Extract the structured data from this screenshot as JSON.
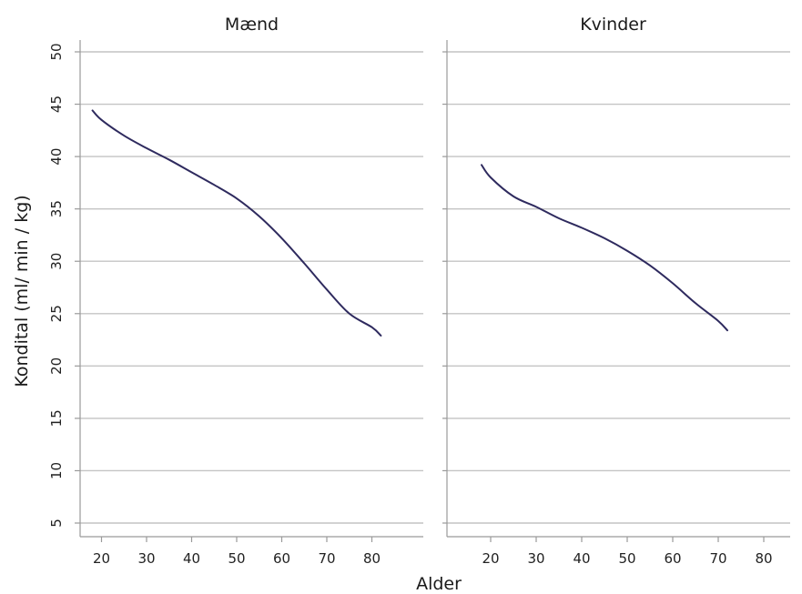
{
  "chart_data": {
    "type": "line",
    "ylabel": "Kondital (ml/ min / kg)",
    "xlabel": "Alder",
    "ylim": [
      5,
      50
    ],
    "yticks": [
      5,
      10,
      15,
      20,
      25,
      30,
      35,
      40,
      45,
      50
    ],
    "xlim": [
      15,
      85
    ],
    "xticks": [
      20,
      30,
      40,
      50,
      60,
      70,
      80
    ],
    "grid": true,
    "line_color": "#2e2a5e",
    "panels": [
      {
        "title": "Mænd",
        "series": [
          {
            "x": [
              18,
              20,
              25,
              30,
              35,
              40,
              45,
              50,
              55,
              60,
              65,
              70,
              75,
              80,
              82
            ],
            "y": [
              44.4,
              43.5,
              42.0,
              40.8,
              39.7,
              38.5,
              37.3,
              36.0,
              34.3,
              32.2,
              29.8,
              27.3,
              25.0,
              23.7,
              22.9
            ]
          }
        ]
      },
      {
        "title": "Kvinder",
        "series": [
          {
            "x": [
              18,
              20,
              25,
              30,
              35,
              40,
              45,
              50,
              55,
              60,
              65,
              70,
              72
            ],
            "y": [
              39.2,
              38.0,
              36.2,
              35.2,
              34.1,
              33.2,
              32.2,
              31.0,
              29.6,
              27.9,
              26.0,
              24.3,
              23.4
            ]
          }
        ]
      }
    ]
  }
}
